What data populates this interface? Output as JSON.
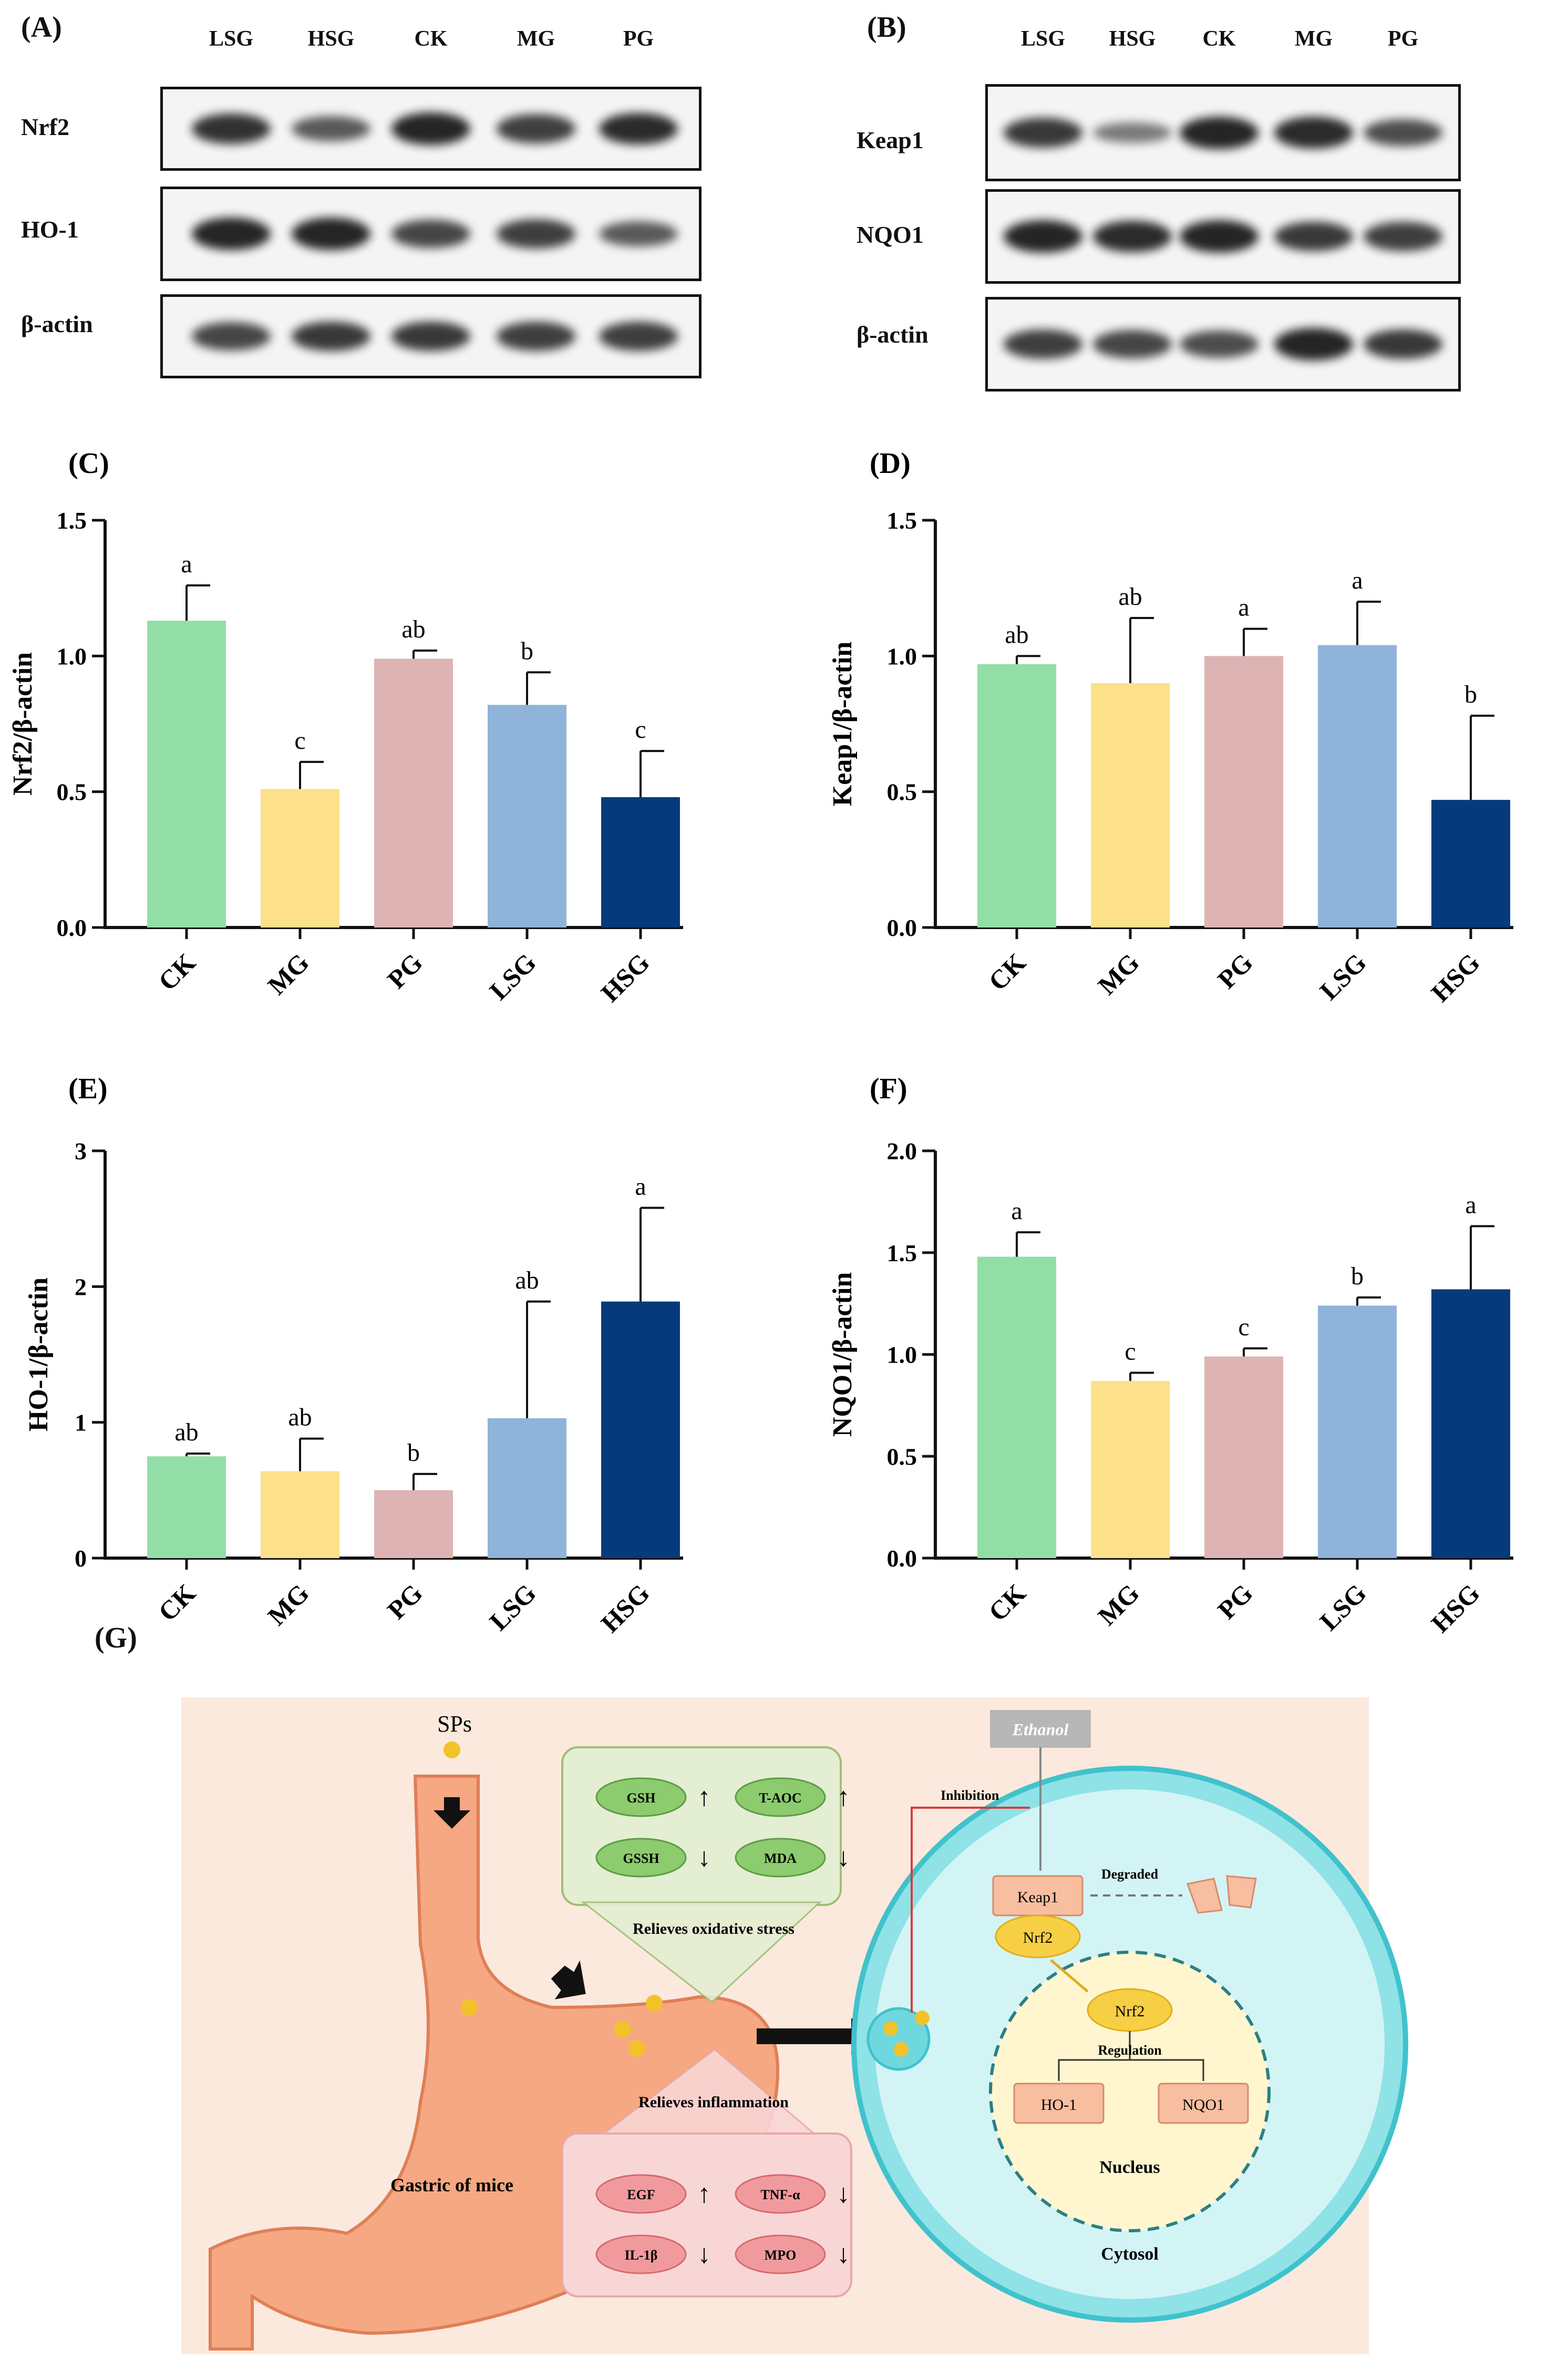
{
  "panels": {
    "A": "(A)",
    "B": "(B)",
    "C": "(C)",
    "D": "(D)",
    "E": "(E)",
    "F": "(F)",
    "G": "(G)"
  },
  "blot_a": {
    "lanes": [
      "LSG",
      "HSG",
      "CK",
      "MG",
      "PG"
    ],
    "rows": [
      {
        "label": "Nrf2",
        "intensity": [
          0.9,
          0.6,
          1.0,
          0.8,
          0.95
        ]
      },
      {
        "label": "HO-1",
        "intensity": [
          1.0,
          1.0,
          0.75,
          0.8,
          0.6
        ]
      },
      {
        "label": "β-actin",
        "intensity": [
          0.75,
          0.85,
          0.85,
          0.8,
          0.8
        ]
      }
    ]
  },
  "blot_b": {
    "lanes": [
      "LSG",
      "HSG",
      "CK",
      "MG",
      "PG"
    ],
    "rows": [
      {
        "label": "Keap1",
        "intensity": [
          0.85,
          0.35,
          1.0,
          0.95,
          0.7
        ]
      },
      {
        "label": "NQO1",
        "intensity": [
          1.0,
          0.95,
          1.0,
          0.85,
          0.8
        ]
      },
      {
        "label": "β-actin",
        "intensity": [
          0.8,
          0.75,
          0.7,
          1.0,
          0.85
        ]
      }
    ]
  },
  "colors": {
    "CK": "#93dea6",
    "MG": "#fde08a",
    "PG": "#deb3b3",
    "LSG": "#8fb3d9",
    "HSG": "#053b7c"
  },
  "chart_data": [
    {
      "panel": "(C)",
      "type": "bar",
      "ylabel": "Nrf2/β-actin",
      "categories": [
        "CK",
        "MG",
        "PG",
        "LSG",
        "HSG"
      ],
      "values": [
        1.13,
        0.51,
        0.99,
        0.82,
        0.48
      ],
      "errors": [
        0.13,
        0.1,
        0.03,
        0.12,
        0.17
      ],
      "letters": [
        "a",
        "c",
        "ab",
        "b",
        "c"
      ],
      "ylim": [
        0,
        1.5
      ],
      "ticks": [
        "0.0",
        "0.5",
        "1.0",
        "1.5"
      ]
    },
    {
      "panel": "(D)",
      "type": "bar",
      "ylabel": "Keap1/β-actin",
      "categories": [
        "CK",
        "MG",
        "PG",
        "LSG",
        "HSG"
      ],
      "values": [
        0.97,
        0.9,
        1.0,
        1.04,
        0.47
      ],
      "errors": [
        0.03,
        0.24,
        0.1,
        0.16,
        0.31
      ],
      "letters": [
        "ab",
        "ab",
        "a",
        "a",
        "b"
      ],
      "ylim": [
        0,
        1.5
      ],
      "ticks": [
        "0.0",
        "0.5",
        "1.0",
        "1.5"
      ]
    },
    {
      "panel": "(E)",
      "type": "bar",
      "ylabel": "HO-1/β-actin",
      "categories": [
        "CK",
        "MG",
        "PG",
        "LSG",
        "HSG"
      ],
      "values": [
        0.75,
        0.64,
        0.5,
        1.03,
        1.89
      ],
      "errors": [
        0.02,
        0.24,
        0.12,
        0.86,
        0.69
      ],
      "letters": [
        "ab",
        "ab",
        "b",
        "ab",
        "a"
      ],
      "ylim": [
        0,
        3
      ],
      "ticks": [
        "0",
        "1",
        "2",
        "3"
      ]
    },
    {
      "panel": "(F)",
      "type": "bar",
      "ylabel": "NQO1/β-actin",
      "categories": [
        "CK",
        "MG",
        "PG",
        "LSG",
        "HSG"
      ],
      "values": [
        1.48,
        0.87,
        0.99,
        1.24,
        1.32
      ],
      "errors": [
        0.12,
        0.04,
        0.04,
        0.04,
        0.31
      ],
      "letters": [
        "a",
        "c",
        "c",
        "b",
        "a"
      ],
      "ylim": [
        0,
        2
      ],
      "ticks": [
        "0.0",
        "0.5",
        "1.0",
        "1.5",
        "2.0"
      ]
    }
  ],
  "diagram": {
    "sps": "SPs",
    "stomach": "Gastric of mice",
    "oxidative_title": "Relieves oxidative stress",
    "oxidative_items": [
      {
        "label": "GSH",
        "arrow": "↑"
      },
      {
        "label": "T-AOC",
        "arrow": "↑"
      },
      {
        "label": "GSSH",
        "arrow": "↓"
      },
      {
        "label": "MDA",
        "arrow": "↓"
      }
    ],
    "inflammation_title": "Relieves inflammation",
    "inflammation_items": [
      {
        "label": "EGF",
        "arrow": "↑"
      },
      {
        "label": "TNF-α",
        "arrow": "↓"
      },
      {
        "label": "IL-1β",
        "arrow": "↓"
      },
      {
        "label": "MPO",
        "arrow": "↓"
      }
    ],
    "ethanol": "Ethanol",
    "inhibition": "Inhibition",
    "keap1": "Keap1",
    "nrf2": "Nrf2",
    "degraded": "Degraded",
    "nrf2_nucleus": "Nrf2",
    "regulation": "Regulation",
    "ho1": "HO-1",
    "nqo1": "NQO1",
    "nucleus": "Nucleus",
    "cytosol": "Cytosol"
  }
}
